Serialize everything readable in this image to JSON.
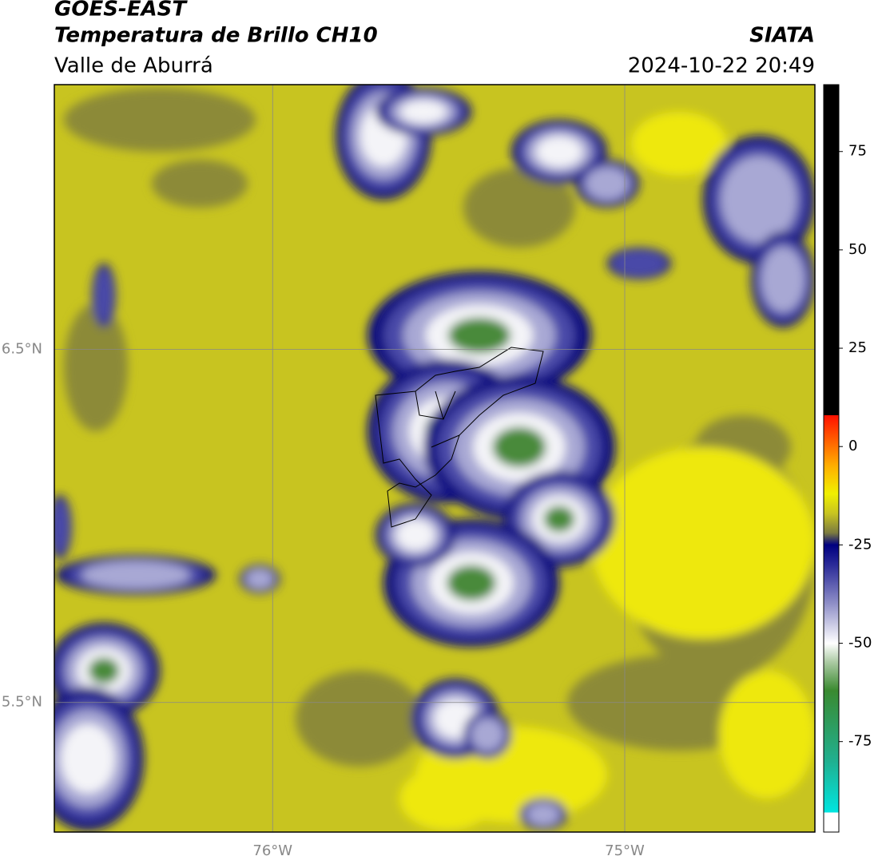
{
  "header": {
    "title": "GOES-EAST",
    "subtitle": "Temperatura de Brillo CH10",
    "region": "Valle de Aburrá",
    "source": "SIATA",
    "datetime": "2024-10-22 20:49"
  },
  "map": {
    "xlim": [
      -76.62,
      -74.46
    ],
    "ylim": [
      5.133,
      7.25
    ],
    "xticks": [
      {
        "value": -76,
        "label": "76°W"
      },
      {
        "value": -75,
        "label": "75°W"
      }
    ],
    "yticks": [
      {
        "value": 6.5,
        "label": "6.5°N"
      },
      {
        "value": 5.5,
        "label": "5.5°N"
      }
    ],
    "grid": true
  },
  "colorbar": {
    "range": [
      -98,
      92
    ],
    "ticks": [
      75,
      50,
      25,
      0,
      -25,
      -50,
      -75
    ],
    "stops": [
      {
        "value": -98,
        "color": "#ffffff"
      },
      {
        "value": -93,
        "color": "#ffffff"
      },
      {
        "value": -93,
        "color": "#00e5e0"
      },
      {
        "value": -80,
        "color": "#20b090"
      },
      {
        "value": -62,
        "color": "#3a8a30"
      },
      {
        "value": -55,
        "color": "#a8c8a0"
      },
      {
        "value": -50,
        "color": "#ffffff"
      },
      {
        "value": -40,
        "color": "#9090c8"
      },
      {
        "value": -30,
        "color": "#2a2a98"
      },
      {
        "value": -25,
        "color": "#000080"
      },
      {
        "value": -22,
        "color": "#7a7a40"
      },
      {
        "value": -17,
        "color": "#c8c420"
      },
      {
        "value": -12,
        "color": "#f0f000"
      },
      {
        "value": -5,
        "color": "#ffb000"
      },
      {
        "value": 8,
        "color": "#ff1000"
      },
      {
        "value": 8,
        "color": "#000000"
      },
      {
        "value": 92,
        "color": "#000000"
      }
    ]
  }
}
